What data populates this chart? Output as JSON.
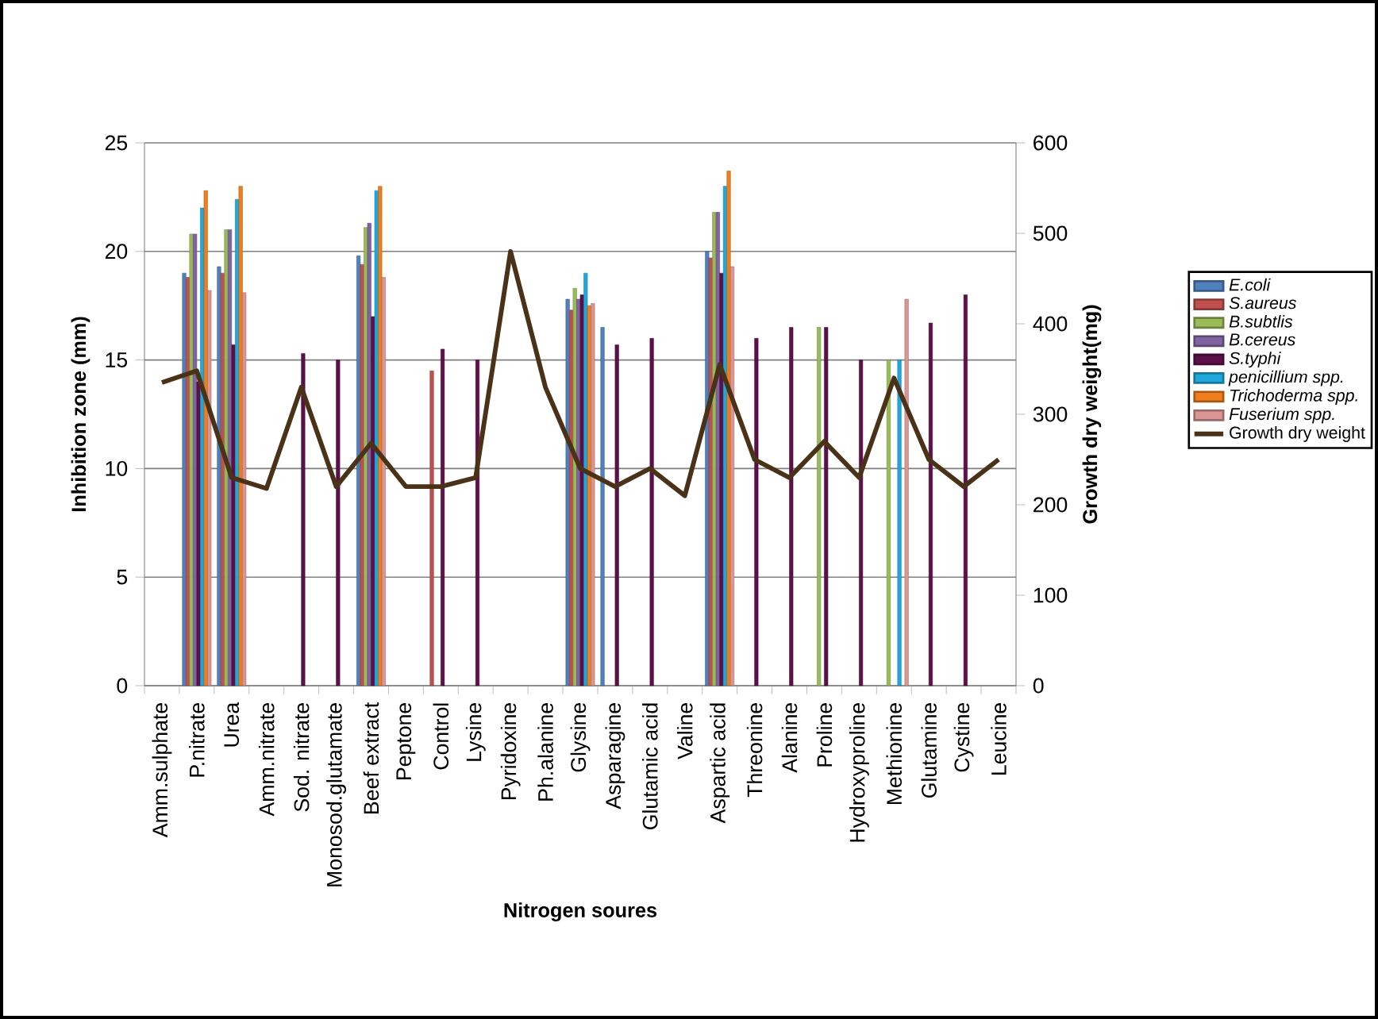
{
  "chart_data": {
    "type": "bar",
    "xlabel": "Nitrogen soures",
    "ylabel": "Inhibition zone (mm)",
    "y2label": "Growth dry weight(mg)",
    "categories": [
      "Amm.sulphate",
      "P.nitrate",
      "Urea",
      "Amm.nitrate",
      "Sod. nitrate",
      "Monosod.glutamate",
      "Beef extract",
      "Peptone",
      "Control",
      "Lysine",
      "Pyridoxine",
      "Ph.alanine",
      "Glysine",
      "Asparagine",
      "Glutamic acid",
      "Valine",
      "Aspartic acid",
      "Threonine",
      "Alanine",
      "Proline",
      "Hydroxyproline",
      "Methionine",
      "Glutamine",
      "Cystine",
      "Leucine"
    ],
    "series": [
      {
        "name": "E.coli",
        "color": "#4f81bd",
        "values": [
          null,
          19,
          19.3,
          null,
          null,
          null,
          19.8,
          null,
          null,
          null,
          null,
          null,
          17.8,
          16.5,
          null,
          null,
          20,
          null,
          null,
          null,
          null,
          null,
          null,
          null,
          null
        ]
      },
      {
        "name": "S.aureus",
        "color": "#c0504d",
        "values": [
          null,
          18.8,
          19,
          null,
          null,
          null,
          19.4,
          null,
          14.5,
          null,
          null,
          null,
          17.3,
          null,
          null,
          null,
          19.7,
          null,
          null,
          null,
          null,
          null,
          null,
          null,
          null
        ]
      },
      {
        "name": "B.subtlis",
        "color": "#9bbb59",
        "values": [
          null,
          20.8,
          21,
          null,
          null,
          null,
          21.1,
          null,
          null,
          null,
          null,
          null,
          18.3,
          null,
          null,
          null,
          21.8,
          null,
          null,
          16.5,
          null,
          15,
          null,
          null,
          null
        ]
      },
      {
        "name": "B.cereus",
        "color": "#8064a2",
        "values": [
          null,
          20.8,
          21,
          null,
          null,
          null,
          21.3,
          null,
          null,
          null,
          null,
          null,
          17.8,
          null,
          null,
          null,
          21.8,
          null,
          null,
          null,
          null,
          null,
          null,
          null,
          null
        ]
      },
      {
        "name": "S.typhi",
        "color": "#5c1048",
        "values": [
          null,
          14,
          15.7,
          null,
          15.3,
          15,
          17,
          null,
          15.5,
          15,
          null,
          null,
          18,
          15.7,
          16,
          null,
          19,
          16,
          16.5,
          16.5,
          15,
          null,
          16.7,
          18,
          null
        ]
      },
      {
        "name": "penicillium spp.",
        "color": "#1fa8dc",
        "values": [
          null,
          22,
          22.4,
          null,
          null,
          null,
          22.8,
          null,
          null,
          null,
          null,
          null,
          19,
          null,
          null,
          null,
          23,
          null,
          null,
          null,
          null,
          15,
          null,
          null,
          null
        ]
      },
      {
        "name": "Trichoderma spp.",
        "color": "#f07d1e",
        "values": [
          null,
          22.8,
          23,
          null,
          null,
          null,
          23,
          null,
          null,
          null,
          null,
          null,
          17.5,
          null,
          null,
          null,
          23.7,
          null,
          null,
          null,
          null,
          null,
          null,
          null,
          null
        ]
      },
      {
        "name": "Fuserium spp.",
        "color": "#d99694",
        "values": [
          null,
          18.2,
          18.1,
          null,
          null,
          null,
          18.8,
          null,
          null,
          null,
          null,
          null,
          17.6,
          null,
          null,
          null,
          19.3,
          null,
          null,
          null,
          null,
          17.8,
          null,
          null,
          null
        ]
      },
      {
        "name": "Growth dry weight",
        "color": "#4a3218",
        "type": "line",
        "axis": "y2",
        "values": [
          335,
          348,
          230,
          218,
          330,
          220,
          268,
          220,
          220,
          230,
          480,
          330,
          240,
          220,
          240,
          210,
          355,
          250,
          230,
          270,
          230,
          340,
          250,
          220,
          250
        ]
      }
    ],
    "ylim": [
      0,
      25
    ],
    "yticks": [
      0,
      5,
      10,
      15,
      20,
      25
    ],
    "y2lim": [
      0,
      600
    ],
    "y2ticks": [
      0,
      100,
      200,
      300,
      400,
      500,
      600
    ],
    "grid": "y",
    "legend": "right"
  }
}
